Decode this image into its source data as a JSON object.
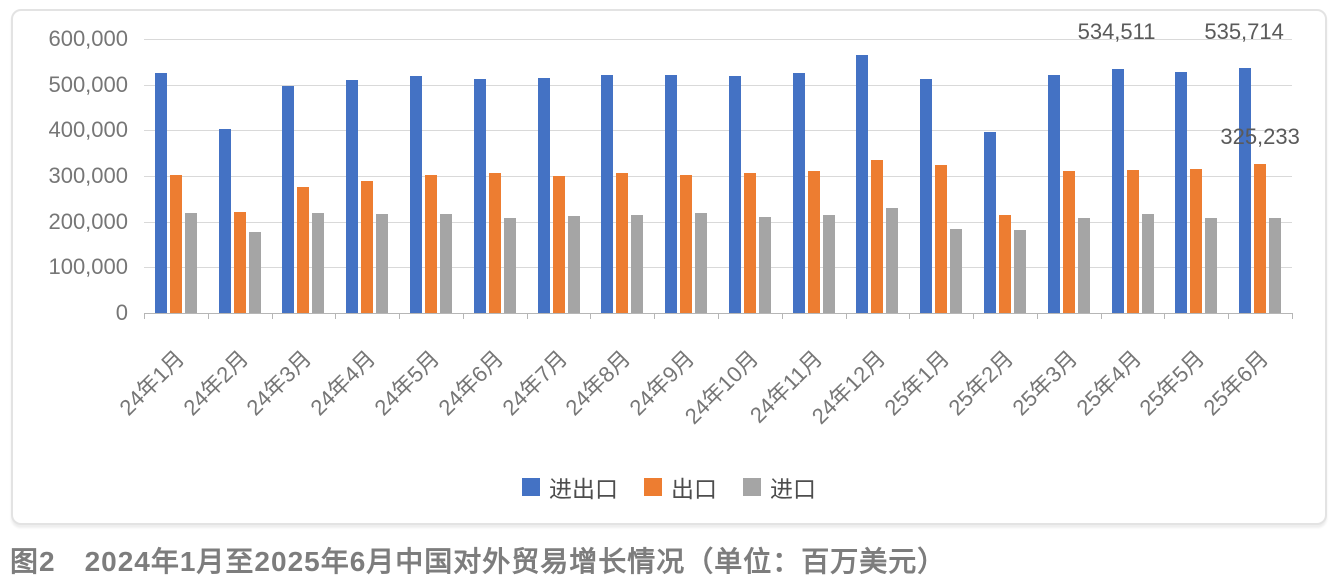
{
  "figure": {
    "caption": "图2　2024年1月至2025年6月中国对外贸易增长情况（单位：百万美元）"
  },
  "chart_data": {
    "type": "bar",
    "title": "",
    "unit": "百万美元",
    "categories": [
      "24年1月",
      "24年2月",
      "24年3月",
      "24年4月",
      "24年5月",
      "24年6月",
      "24年7月",
      "24年8月",
      "24年9月",
      "24年10月",
      "24年11月",
      "24年12月",
      "25年1月",
      "25年2月",
      "25年3月",
      "25年4月",
      "25年5月",
      "25年6月"
    ],
    "series": [
      {
        "key": "total",
        "name": "进出口",
        "color": "#4472C4",
        "values": [
          525000,
          402000,
          497000,
          510000,
          518000,
          513000,
          514000,
          521000,
          522000,
          519000,
          525000,
          565000,
          513000,
          396000,
          522000,
          534511,
          528000,
          535714
        ]
      },
      {
        "key": "export",
        "name": "出口",
        "color": "#ED7D31",
        "values": [
          303000,
          221000,
          277000,
          290000,
          302000,
          306000,
          300000,
          307000,
          303000,
          307000,
          310000,
          335000,
          324000,
          214000,
          312000,
          313000,
          316000,
          325233
        ]
      },
      {
        "key": "import",
        "name": "进口",
        "color": "#A5A5A5",
        "values": [
          218000,
          178000,
          220000,
          216000,
          217000,
          207000,
          212000,
          214000,
          220000,
          210000,
          214000,
          230000,
          185000,
          181000,
          209000,
          216000,
          209000,
          208000
        ]
      }
    ],
    "ylim": [
      0,
      600000
    ],
    "ytick_step": 100000,
    "ytick_labels": [
      "0",
      "100,000",
      "200,000",
      "300,000",
      "400,000",
      "500,000",
      "600,000"
    ],
    "grid": true,
    "legend_position": "bottom-center",
    "data_labels": [
      {
        "series": "进出口",
        "category": "25年4月",
        "text": "534,511"
      },
      {
        "series": "进出口",
        "category": "25年6月",
        "text": "535,714"
      },
      {
        "series": "出口",
        "category": "25年6月",
        "text": "325,233"
      }
    ]
  }
}
